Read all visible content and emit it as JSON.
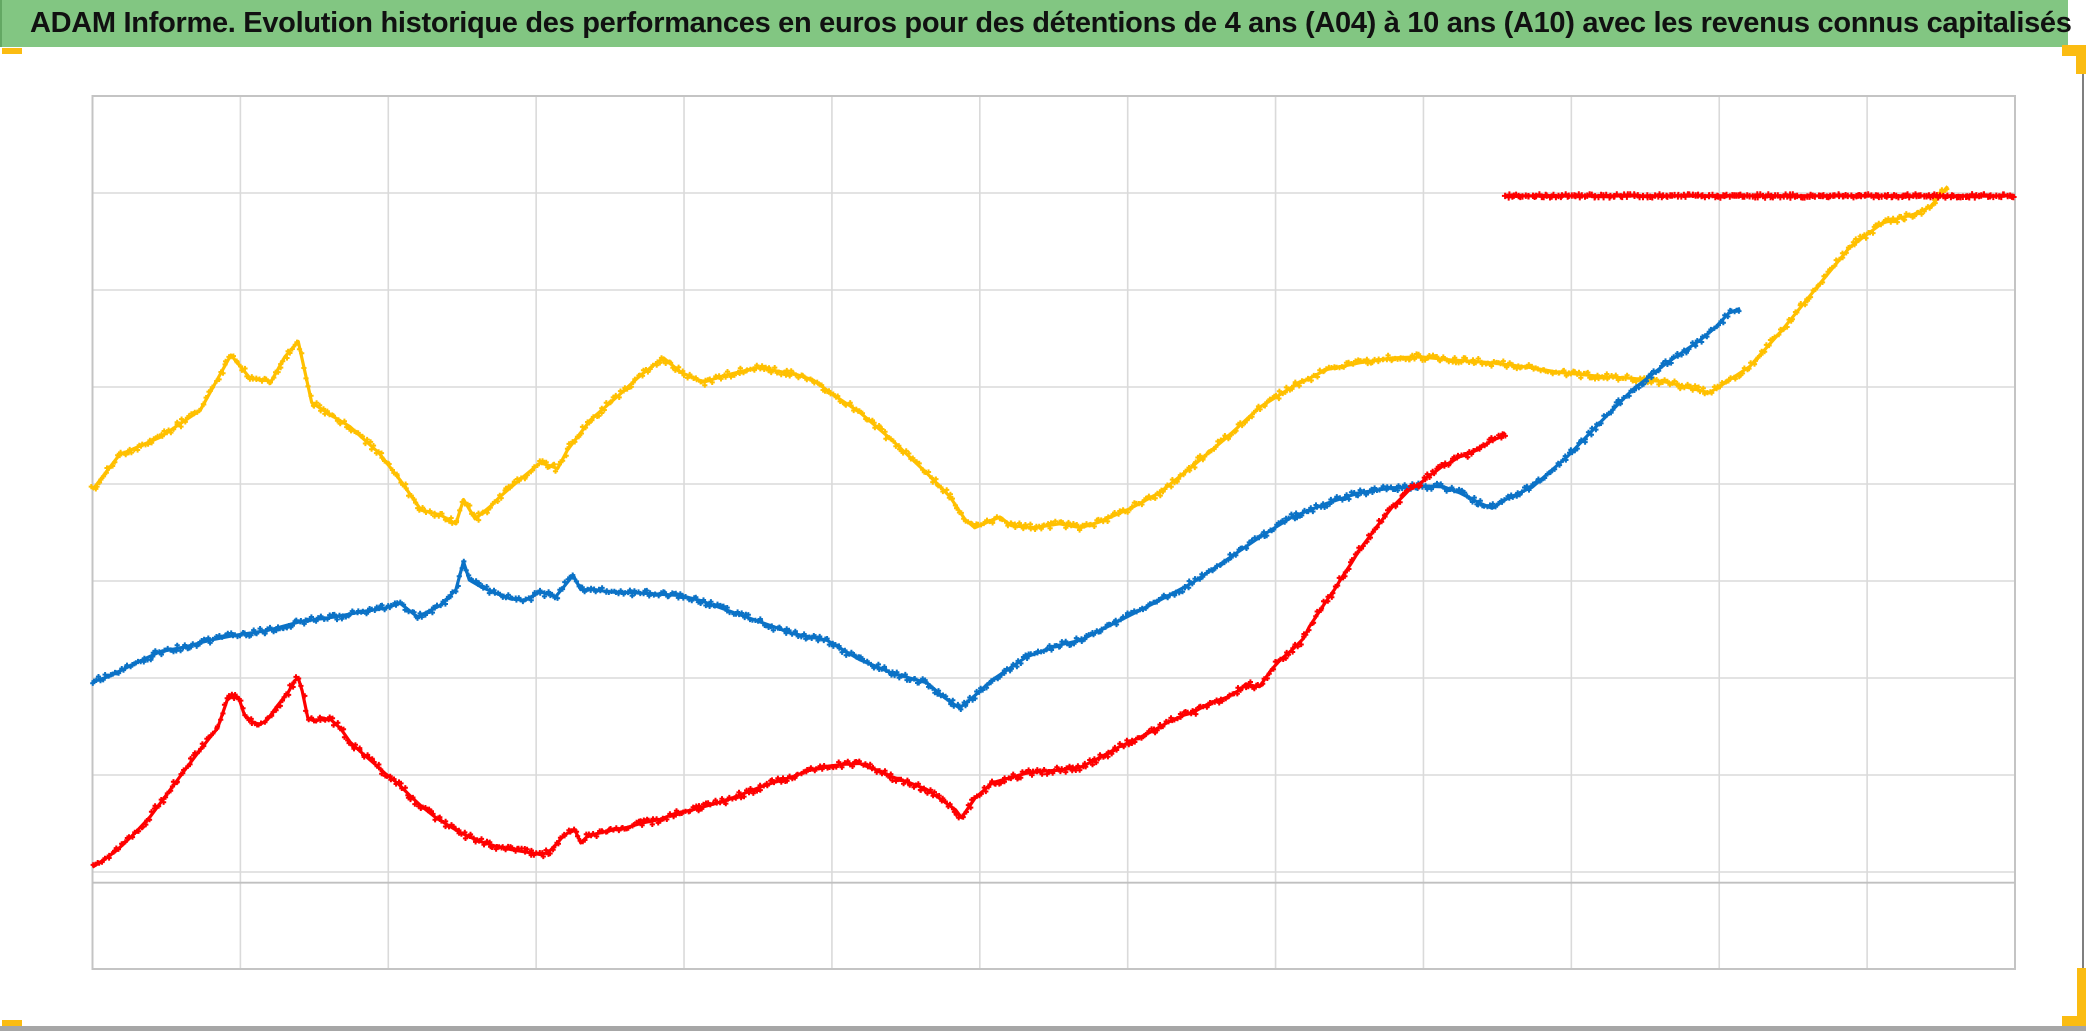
{
  "header": {
    "title": "ADAM Informe. Evolution historique des performances en euros pour des détentions de 4 ans (A04) à 10 ans (A10) avec les revenus connus capitalisés"
  },
  "colors": {
    "title_bg": "#82c682",
    "accent_yellow": "#fbbc12",
    "border_gray": "#7f7f7f",
    "bar_gray": "#a6a6a6",
    "plot_border": "#c4c4c4",
    "gridline": "#dadada",
    "axis_line": "#c0c0c0",
    "series_yellow": "#FFC000",
    "series_blue": "#0B72C6",
    "series_red": "#FE0000",
    "background": "#ffffff"
  },
  "chart_data": {
    "type": "scatter",
    "title": "ADAM Informe. Evolution historique des performances en euros pour des détentions de 4 ans (A04) à 10 ans (A10) avec les revenus connus capitalisés",
    "xlabel": "",
    "ylabel": "",
    "legend": "none",
    "axis_tick_labels_visible": false,
    "x_units": "fraction of plot width (no tick labels shown in chart)",
    "y_units": "gridline intervals above plot bottom (no tick labels shown in chart)",
    "grid": {
      "cols": 13,
      "rows": 9,
      "axis_line_row_offset": 0.89
    },
    "marker": "plus",
    "series": [
      {
        "name": "yellow",
        "color": "#FFC000",
        "points": [
          [
            0.0,
            4.94
          ],
          [
            0.014,
            5.3
          ],
          [
            0.035,
            5.48
          ],
          [
            0.056,
            5.76
          ],
          [
            0.072,
            6.33
          ],
          [
            0.082,
            6.09
          ],
          [
            0.093,
            6.06
          ],
          [
            0.1,
            6.31
          ],
          [
            0.107,
            6.47
          ],
          [
            0.114,
            5.84
          ],
          [
            0.124,
            5.71
          ],
          [
            0.134,
            5.59
          ],
          [
            0.149,
            5.32
          ],
          [
            0.16,
            5.04
          ],
          [
            0.171,
            4.73
          ],
          [
            0.181,
            4.68
          ],
          [
            0.189,
            4.59
          ],
          [
            0.193,
            4.84
          ],
          [
            0.199,
            4.64
          ],
          [
            0.207,
            4.77
          ],
          [
            0.212,
            4.87
          ],
          [
            0.222,
            5.04
          ],
          [
            0.233,
            5.22
          ],
          [
            0.242,
            5.16
          ],
          [
            0.247,
            5.35
          ],
          [
            0.259,
            5.66
          ],
          [
            0.274,
            5.92
          ],
          [
            0.285,
            6.12
          ],
          [
            0.297,
            6.3
          ],
          [
            0.306,
            6.15
          ],
          [
            0.318,
            6.05
          ],
          [
            0.329,
            6.12
          ],
          [
            0.346,
            6.2
          ],
          [
            0.366,
            6.13
          ],
          [
            0.375,
            6.07
          ],
          [
            0.386,
            5.91
          ],
          [
            0.399,
            5.74
          ],
          [
            0.416,
            5.45
          ],
          [
            0.434,
            5.11
          ],
          [
            0.446,
            4.87
          ],
          [
            0.454,
            4.63
          ],
          [
            0.459,
            4.55
          ],
          [
            0.467,
            4.62
          ],
          [
            0.472,
            4.66
          ],
          [
            0.478,
            4.57
          ],
          [
            0.49,
            4.55
          ],
          [
            0.503,
            4.59
          ],
          [
            0.514,
            4.55
          ],
          [
            0.524,
            4.61
          ],
          [
            0.54,
            4.75
          ],
          [
            0.555,
            4.91
          ],
          [
            0.572,
            5.18
          ],
          [
            0.59,
            5.48
          ],
          [
            0.607,
            5.79
          ],
          [
            0.624,
            6.0
          ],
          [
            0.642,
            6.18
          ],
          [
            0.659,
            6.25
          ],
          [
            0.676,
            6.3
          ],
          [
            0.691,
            6.31
          ],
          [
            0.706,
            6.28
          ],
          [
            0.722,
            6.26
          ],
          [
            0.732,
            6.24
          ],
          [
            0.748,
            6.2
          ],
          [
            0.763,
            6.15
          ],
          [
            0.784,
            6.11
          ],
          [
            0.801,
            6.09
          ],
          [
            0.819,
            6.05
          ],
          [
            0.835,
            5.97
          ],
          [
            0.841,
            5.94
          ],
          [
            0.849,
            6.04
          ],
          [
            0.862,
            6.21
          ],
          [
            0.879,
            6.59
          ],
          [
            0.897,
            7.03
          ],
          [
            0.914,
            7.44
          ],
          [
            0.931,
            7.69
          ],
          [
            0.94,
            7.74
          ],
          [
            0.949,
            7.79
          ],
          [
            0.956,
            7.86
          ],
          [
            0.961,
            7.97
          ],
          [
            0.965,
            8.07
          ]
        ]
      },
      {
        "name": "blue",
        "color": "#0B72C6",
        "points": [
          [
            0.0,
            2.96
          ],
          [
            0.009,
            3.02
          ],
          [
            0.022,
            3.15
          ],
          [
            0.035,
            3.27
          ],
          [
            0.048,
            3.32
          ],
          [
            0.061,
            3.39
          ],
          [
            0.074,
            3.44
          ],
          [
            0.091,
            3.49
          ],
          [
            0.108,
            3.58
          ],
          [
            0.126,
            3.63
          ],
          [
            0.142,
            3.69
          ],
          [
            0.152,
            3.72
          ],
          [
            0.16,
            3.77
          ],
          [
            0.169,
            3.63
          ],
          [
            0.181,
            3.75
          ],
          [
            0.189,
            3.91
          ],
          [
            0.193,
            4.2
          ],
          [
            0.196,
            4.01
          ],
          [
            0.202,
            3.94
          ],
          [
            0.209,
            3.88
          ],
          [
            0.217,
            3.82
          ],
          [
            0.225,
            3.8
          ],
          [
            0.233,
            3.89
          ],
          [
            0.241,
            3.84
          ],
          [
            0.246,
            3.96
          ],
          [
            0.25,
            4.06
          ],
          [
            0.254,
            3.91
          ],
          [
            0.26,
            3.91
          ],
          [
            0.269,
            3.89
          ],
          [
            0.28,
            3.88
          ],
          [
            0.29,
            3.87
          ],
          [
            0.306,
            3.85
          ],
          [
            0.316,
            3.8
          ],
          [
            0.33,
            3.7
          ],
          [
            0.347,
            3.58
          ],
          [
            0.364,
            3.46
          ],
          [
            0.382,
            3.39
          ],
          [
            0.399,
            3.19
          ],
          [
            0.416,
            3.05
          ],
          [
            0.434,
            2.95
          ],
          [
            0.443,
            2.8
          ],
          [
            0.451,
            2.69
          ],
          [
            0.459,
            2.82
          ],
          [
            0.468,
            2.98
          ],
          [
            0.486,
            3.22
          ],
          [
            0.503,
            3.34
          ],
          [
            0.514,
            3.39
          ],
          [
            0.538,
            3.63
          ],
          [
            0.555,
            3.8
          ],
          [
            0.572,
            3.98
          ],
          [
            0.59,
            4.22
          ],
          [
            0.607,
            4.45
          ],
          [
            0.624,
            4.66
          ],
          [
            0.642,
            4.8
          ],
          [
            0.659,
            4.91
          ],
          [
            0.676,
            4.96
          ],
          [
            0.691,
            4.98
          ],
          [
            0.703,
            4.97
          ],
          [
            0.711,
            4.91
          ],
          [
            0.722,
            4.8
          ],
          [
            0.728,
            4.75
          ],
          [
            0.735,
            4.84
          ],
          [
            0.749,
            4.97
          ],
          [
            0.767,
            5.28
          ],
          [
            0.784,
            5.63
          ],
          [
            0.801,
            5.97
          ],
          [
            0.819,
            6.25
          ],
          [
            0.836,
            6.48
          ],
          [
            0.844,
            6.61
          ],
          [
            0.851,
            6.76
          ],
          [
            0.857,
            6.81
          ]
        ]
      },
      {
        "name": "red",
        "color": "#FE0000",
        "points": [
          [
            0.0,
            1.05
          ],
          [
            0.007,
            1.14
          ],
          [
            0.013,
            1.23
          ],
          [
            0.022,
            1.4
          ],
          [
            0.03,
            1.57
          ],
          [
            0.039,
            1.81
          ],
          [
            0.048,
            2.05
          ],
          [
            0.056,
            2.26
          ],
          [
            0.062,
            2.41
          ],
          [
            0.065,
            2.48
          ],
          [
            0.07,
            2.77
          ],
          [
            0.073,
            2.82
          ],
          [
            0.076,
            2.8
          ],
          [
            0.079,
            2.62
          ],
          [
            0.083,
            2.55
          ],
          [
            0.087,
            2.52
          ],
          [
            0.091,
            2.57
          ],
          [
            0.096,
            2.71
          ],
          [
            0.102,
            2.86
          ],
          [
            0.105,
            2.97
          ],
          [
            0.107,
            3.0
          ],
          [
            0.109,
            2.87
          ],
          [
            0.112,
            2.59
          ],
          [
            0.116,
            2.55
          ],
          [
            0.119,
            2.59
          ],
          [
            0.124,
            2.57
          ],
          [
            0.129,
            2.48
          ],
          [
            0.134,
            2.34
          ],
          [
            0.14,
            2.23
          ],
          [
            0.147,
            2.11
          ],
          [
            0.152,
            2.02
          ],
          [
            0.159,
            1.91
          ],
          [
            0.165,
            1.79
          ],
          [
            0.171,
            1.68
          ],
          [
            0.178,
            1.57
          ],
          [
            0.185,
            1.48
          ],
          [
            0.192,
            1.4
          ],
          [
            0.201,
            1.32
          ],
          [
            0.209,
            1.27
          ],
          [
            0.218,
            1.23
          ],
          [
            0.227,
            1.2
          ],
          [
            0.233,
            1.18
          ],
          [
            0.237,
            1.2
          ],
          [
            0.241,
            1.28
          ],
          [
            0.244,
            1.35
          ],
          [
            0.247,
            1.4
          ],
          [
            0.251,
            1.43
          ],
          [
            0.254,
            1.3
          ],
          [
            0.257,
            1.36
          ],
          [
            0.261,
            1.39
          ],
          [
            0.27,
            1.43
          ],
          [
            0.278,
            1.46
          ],
          [
            0.287,
            1.51
          ],
          [
            0.295,
            1.54
          ],
          [
            0.304,
            1.61
          ],
          [
            0.312,
            1.64
          ],
          [
            0.321,
            1.69
          ],
          [
            0.33,
            1.74
          ],
          [
            0.339,
            1.81
          ],
          [
            0.348,
            1.88
          ],
          [
            0.357,
            1.94
          ],
          [
            0.364,
            1.98
          ],
          [
            0.373,
            2.05
          ],
          [
            0.382,
            2.09
          ],
          [
            0.391,
            2.11
          ],
          [
            0.399,
            2.12
          ],
          [
            0.408,
            2.05
          ],
          [
            0.416,
            1.98
          ],
          [
            0.425,
            1.92
          ],
          [
            0.434,
            1.85
          ],
          [
            0.442,
            1.74
          ],
          [
            0.449,
            1.64
          ],
          [
            0.452,
            1.56
          ],
          [
            0.459,
            1.76
          ],
          [
            0.468,
            1.92
          ],
          [
            0.477,
            1.97
          ],
          [
            0.486,
            2.02
          ],
          [
            0.495,
            2.04
          ],
          [
            0.503,
            2.05
          ],
          [
            0.514,
            2.08
          ],
          [
            0.524,
            2.18
          ],
          [
            0.534,
            2.29
          ],
          [
            0.545,
            2.39
          ],
          [
            0.552,
            2.46
          ],
          [
            0.56,
            2.55
          ],
          [
            0.568,
            2.62
          ],
          [
            0.572,
            2.64
          ],
          [
            0.581,
            2.74
          ],
          [
            0.59,
            2.8
          ],
          [
            0.597,
            2.88
          ],
          [
            0.6,
            2.94
          ],
          [
            0.604,
            2.92
          ],
          [
            0.607,
            2.91
          ],
          [
            0.613,
            3.08
          ],
          [
            0.618,
            3.19
          ],
          [
            0.624,
            3.29
          ],
          [
            0.63,
            3.41
          ],
          [
            0.633,
            3.53
          ],
          [
            0.638,
            3.68
          ],
          [
            0.642,
            3.8
          ],
          [
            0.646,
            3.91
          ],
          [
            0.65,
            4.04
          ],
          [
            0.655,
            4.19
          ],
          [
            0.659,
            4.32
          ],
          [
            0.664,
            4.45
          ],
          [
            0.668,
            4.56
          ],
          [
            0.672,
            4.66
          ],
          [
            0.676,
            4.76
          ],
          [
            0.681,
            4.86
          ],
          [
            0.685,
            4.94
          ],
          [
            0.691,
            5.01
          ],
          [
            0.694,
            5.07
          ],
          [
            0.698,
            5.12
          ],
          [
            0.702,
            5.18
          ],
          [
            0.707,
            5.23
          ],
          [
            0.711,
            5.28
          ],
          [
            0.717,
            5.32
          ],
          [
            0.72,
            5.35
          ],
          [
            0.724,
            5.4
          ],
          [
            0.728,
            5.45
          ],
          [
            0.732,
            5.48
          ],
          [
            0.735,
            5.53
          ]
        ]
      },
      {
        "name": "red-ceiling",
        "color": "#FE0000",
        "points": [
          [
            0.735,
            7.97
          ],
          [
            1.0,
            7.97
          ]
        ]
      }
    ]
  }
}
